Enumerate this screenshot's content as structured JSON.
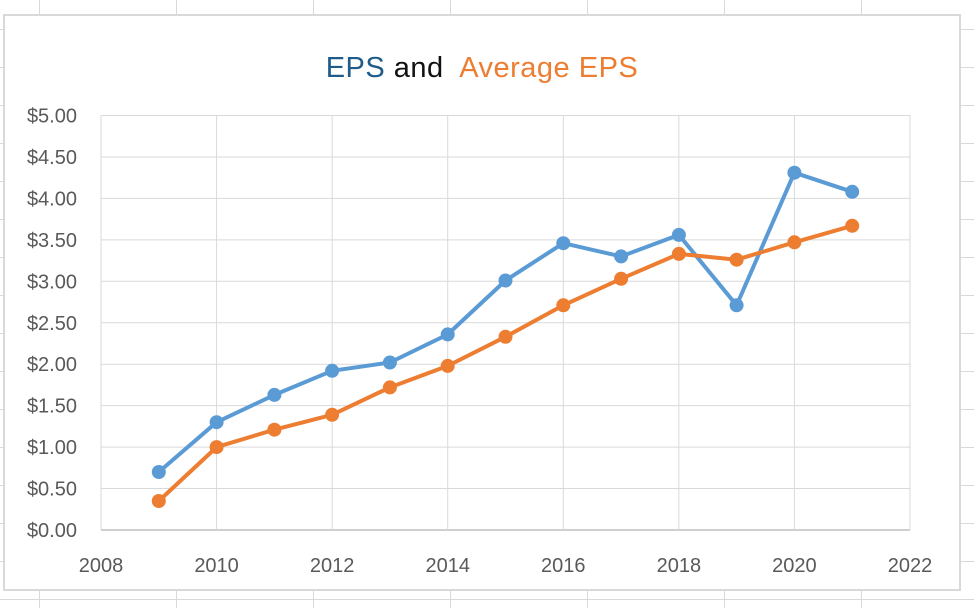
{
  "chart": {
    "title": {
      "eps": "EPS",
      "and": " and ",
      "avg": " Average EPS"
    },
    "colors": {
      "eps_series": "#5B9BD5",
      "avg_series": "#ED7D31",
      "title_eps": "#1F5C8A",
      "title_and": "#111111",
      "title_avg": "#ED7D31",
      "gridline": "#D9D9D9",
      "axis_line": "#BFBFBF",
      "tick_text": "#595959",
      "chart_border": "#D9D9D9",
      "excel_gridline": "#D9D9D9"
    }
  },
  "chart_data": {
    "type": "line",
    "title": "EPS and Average EPS",
    "x": [
      2009,
      2010,
      2011,
      2012,
      2013,
      2014,
      2015,
      2016,
      2017,
      2018,
      2019,
      2020,
      2021
    ],
    "series": [
      {
        "name": "EPS",
        "color": "#5B9BD5",
        "values": [
          0.7,
          1.3,
          1.63,
          1.92,
          2.02,
          2.36,
          3.01,
          3.46,
          3.3,
          3.56,
          2.71,
          4.31,
          4.08
        ]
      },
      {
        "name": "Average EPS",
        "color": "#ED7D31",
        "values": [
          0.35,
          1.0,
          1.21,
          1.39,
          1.72,
          1.98,
          2.33,
          2.71,
          3.03,
          3.33,
          3.26,
          3.47,
          3.67
        ]
      }
    ],
    "xlim": [
      2008,
      2022
    ],
    "ylim": [
      0,
      5
    ],
    "x_ticks": [
      {
        "value": 2008,
        "label": "2008"
      },
      {
        "value": 2010,
        "label": "2010"
      },
      {
        "value": 2012,
        "label": "2012"
      },
      {
        "value": 2014,
        "label": "2014"
      },
      {
        "value": 2016,
        "label": "2016"
      },
      {
        "value": 2018,
        "label": "2018"
      },
      {
        "value": 2020,
        "label": "2020"
      },
      {
        "value": 2022,
        "label": "2022"
      }
    ],
    "y_ticks": [
      {
        "value": 0.0,
        "label": "$0.00"
      },
      {
        "value": 0.5,
        "label": "$0.50"
      },
      {
        "value": 1.0,
        "label": "$1.00"
      },
      {
        "value": 1.5,
        "label": "$1.50"
      },
      {
        "value": 2.0,
        "label": "$2.00"
      },
      {
        "value": 2.5,
        "label": "$2.50"
      },
      {
        "value": 3.0,
        "label": "$3.00"
      },
      {
        "value": 3.5,
        "label": "$3.50"
      },
      {
        "value": 4.0,
        "label": "$4.00"
      },
      {
        "value": 4.5,
        "label": "$4.50"
      },
      {
        "value": 5.0,
        "label": "$5.00"
      }
    ],
    "grid": true,
    "legend_position": "none",
    "marker": "circle",
    "line_width": 4,
    "marker_radius": 7
  }
}
